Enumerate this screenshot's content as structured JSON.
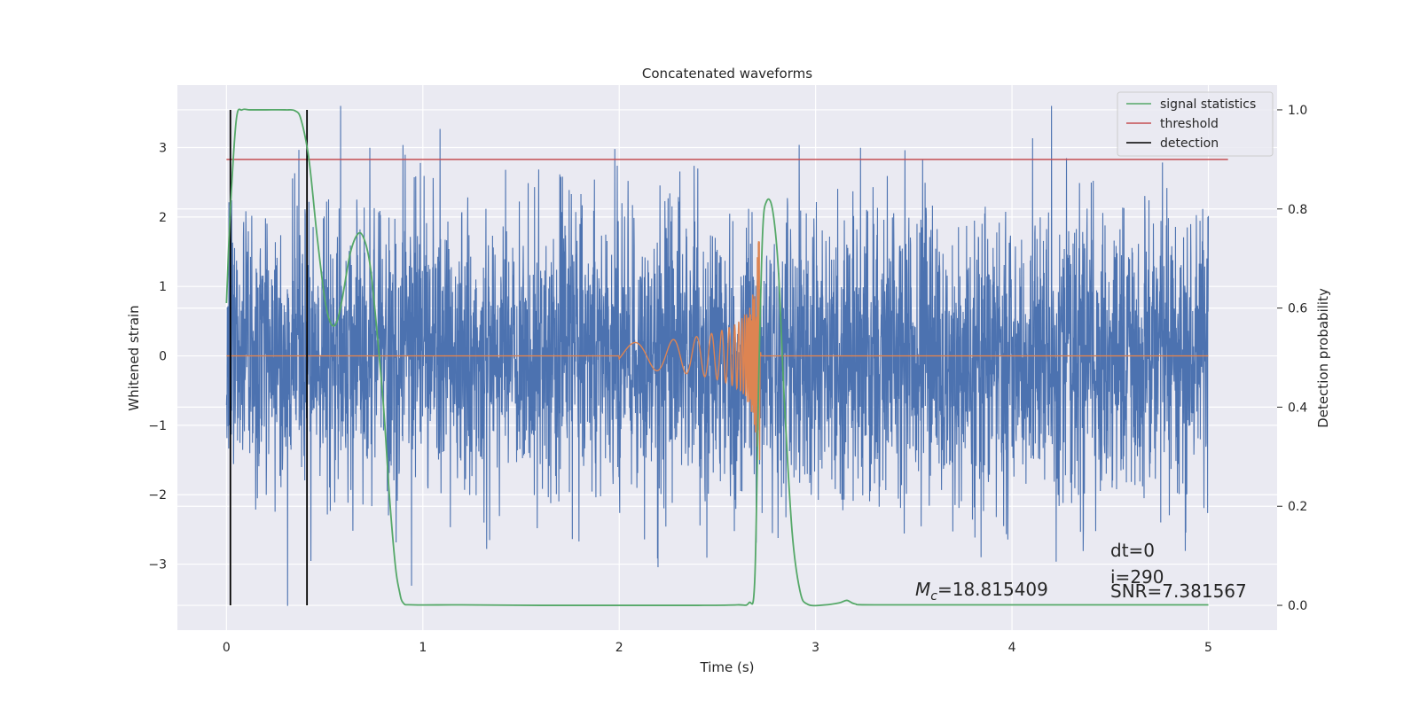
{
  "chart_data": {
    "type": "line",
    "title": "Concatenated waveforms",
    "xlabel": "Time (s)",
    "ylabel": "Whitened strain",
    "y2label": "Detection probability",
    "xlim": [
      -0.25,
      5.35
    ],
    "ylim": [
      -3.95,
      3.9
    ],
    "y2lim": [
      -0.05,
      1.05
    ],
    "xticks": [
      0,
      1,
      2,
      3,
      4,
      5
    ],
    "yticks": [
      -3,
      -2,
      -1,
      0,
      1,
      2,
      3
    ],
    "y2ticks": [
      0.0,
      0.2,
      0.4,
      0.6,
      0.8,
      1.0
    ],
    "xtick_labels": [
      "0",
      "1",
      "2",
      "3",
      "4",
      "5"
    ],
    "ytick_labels": [
      "−3",
      "−2",
      "−1",
      "0",
      "1",
      "2",
      "3"
    ],
    "y2tick_labels": [
      "0.0",
      "0.2",
      "0.4",
      "0.6",
      "0.8",
      "1.0"
    ],
    "grid": true,
    "legend_position": "top-right",
    "legend": [
      "signal statistics",
      "threshold",
      "detection"
    ],
    "colors": {
      "noise": "#4c72b0",
      "waveform": "#dd8452",
      "signal_statistics": "#55a868",
      "threshold": "#c44e52",
      "detection": "#000000",
      "background": "#eaeaf2",
      "grid": "#ffffff"
    },
    "noise": {
      "x_range": [
        0,
        5
      ],
      "typical_amplitude": 1.2,
      "peak_amplitude": 3.6
    },
    "waveform": {
      "start": 2.0,
      "peak_time": 2.72,
      "peak_amplitude": 1.65,
      "start_amplitude": 0.18
    },
    "threshold": {
      "x": [
        0,
        5.1
      ],
      "value": 0.9
    },
    "detections": [
      0.02,
      0.41
    ],
    "signal_statistics": {
      "x": [
        0.0,
        0.02,
        0.05,
        0.08,
        0.12,
        0.2,
        0.3,
        0.35,
        0.38,
        0.42,
        0.46,
        0.5,
        0.53,
        0.56,
        0.59,
        0.63,
        0.67,
        0.7,
        0.73,
        0.76,
        0.8,
        0.83,
        0.86,
        0.88,
        0.9,
        0.95,
        1.2,
        1.6,
        2.0,
        2.4,
        2.6,
        2.66,
        2.69,
        2.71,
        2.73,
        2.75,
        2.78,
        2.81,
        2.84,
        2.88,
        2.92,
        2.96,
        3.05,
        3.12,
        3.16,
        3.2,
        3.3,
        4.0,
        5.0
      ],
      "y": [
        0.61,
        0.8,
        0.98,
        1.0,
        1.0,
        1.0,
        1.0,
        0.998,
        0.98,
        0.9,
        0.75,
        0.62,
        0.57,
        0.57,
        0.62,
        0.71,
        0.75,
        0.74,
        0.69,
        0.58,
        0.4,
        0.22,
        0.08,
        0.03,
        0.005,
        0.001,
        0.001,
        0.0,
        0.0,
        0.0,
        0.001,
        0.005,
        0.05,
        0.45,
        0.75,
        0.815,
        0.8,
        0.68,
        0.42,
        0.15,
        0.03,
        0.002,
        0.001,
        0.005,
        0.01,
        0.003,
        0.001,
        0.001,
        0.001
      ]
    },
    "annotations": {
      "mc_symbol": "M",
      "mc_subscript": "c",
      "mc_value": "=18.815409",
      "dt": "dt=0",
      "i": "i=290",
      "snr": "SNR=7.381567"
    }
  }
}
